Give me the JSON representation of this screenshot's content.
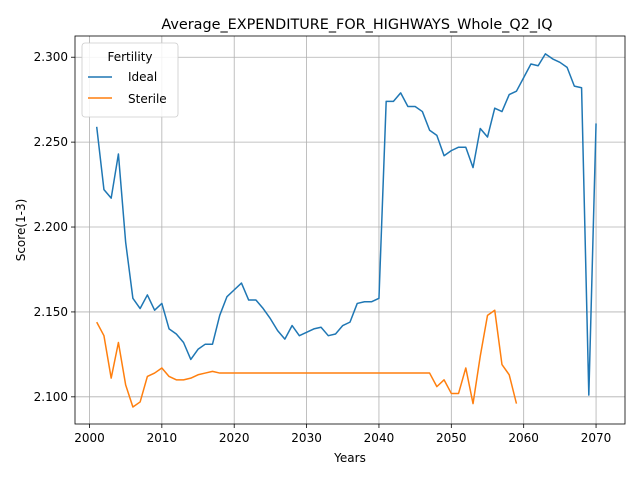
{
  "chart_data": {
    "type": "line",
    "title": "Average_EXPENDITURE_FOR_HIGHWAYS_Whole_Q2_IQ",
    "xlabel": "Years",
    "ylabel": "Score(1-3)",
    "xlim": [
      1998,
      2074
    ],
    "ylim": [
      2.084,
      2.3125
    ],
    "xticks": [
      2000,
      2010,
      2020,
      2030,
      2040,
      2050,
      2060,
      2070
    ],
    "yticks": [
      2.1,
      2.15,
      2.2,
      2.25,
      2.3
    ],
    "ytick_labels": [
      "2.100",
      "2.150",
      "2.200",
      "2.250",
      "2.300"
    ],
    "grid": true,
    "legend": {
      "title": "Fertility",
      "placement": "upper-left"
    },
    "series": [
      {
        "name": "Ideal",
        "color": "#1f77b4",
        "x": [
          2001,
          2002,
          2003,
          2004,
          2005,
          2006,
          2007,
          2008,
          2009,
          2010,
          2011,
          2012,
          2013,
          2014,
          2015,
          2016,
          2017,
          2018,
          2019,
          2020,
          2021,
          2022,
          2023,
          2024,
          2025,
          2026,
          2027,
          2028,
          2029,
          2030,
          2031,
          2032,
          2033,
          2034,
          2035,
          2036,
          2037,
          2038,
          2039,
          2040,
          2041,
          2042,
          2043,
          2044,
          2045,
          2046,
          2047,
          2048,
          2049,
          2050,
          2051,
          2052,
          2053,
          2054,
          2055,
          2056,
          2057,
          2058,
          2059,
          2060,
          2061,
          2062,
          2063,
          2064,
          2065,
          2066,
          2067,
          2068,
          2069,
          2070
        ],
        "values": [
          2.259,
          2.222,
          2.217,
          2.243,
          2.191,
          2.158,
          2.152,
          2.16,
          2.151,
          2.155,
          2.14,
          2.137,
          2.132,
          2.122,
          2.128,
          2.131,
          2.131,
          2.148,
          2.159,
          2.163,
          2.167,
          2.157,
          2.157,
          2.152,
          2.146,
          2.139,
          2.134,
          2.142,
          2.136,
          2.138,
          2.14,
          2.141,
          2.136,
          2.137,
          2.142,
          2.144,
          2.155,
          2.156,
          2.156,
          2.158,
          2.274,
          2.274,
          2.279,
          2.271,
          2.271,
          2.268,
          2.257,
          2.254,
          2.242,
          2.245,
          2.247,
          2.247,
          2.235,
          2.258,
          2.253,
          2.27,
          2.268,
          2.278,
          2.28,
          2.288,
          2.296,
          2.295,
          2.302,
          2.299,
          2.297,
          2.294,
          2.283,
          2.282,
          2.101,
          2.261
        ]
      },
      {
        "name": "Sterile",
        "color": "#ff7f0e",
        "x": [
          2001,
          2002,
          2003,
          2004,
          2005,
          2006,
          2007,
          2008,
          2009,
          2010,
          2011,
          2012,
          2013,
          2014,
          2015,
          2016,
          2017,
          2018,
          2019,
          2020,
          2021,
          2022,
          2023,
          2024,
          2025,
          2026,
          2027,
          2028,
          2029,
          2030,
          2031,
          2032,
          2033,
          2034,
          2035,
          2036,
          2037,
          2038,
          2039,
          2040,
          2041,
          2042,
          2043,
          2044,
          2045,
          2046,
          2047,
          2048,
          2049,
          2050,
          2051,
          2052,
          2053,
          2054,
          2055,
          2056,
          2057,
          2058,
          2059
        ],
        "values": [
          2.144,
          2.136,
          2.111,
          2.132,
          2.107,
          2.094,
          2.097,
          2.112,
          2.114,
          2.117,
          2.112,
          2.11,
          2.11,
          2.111,
          2.113,
          2.114,
          2.115,
          2.114,
          2.114,
          2.114,
          2.114,
          2.114,
          2.114,
          2.114,
          2.114,
          2.114,
          2.114,
          2.114,
          2.114,
          2.114,
          2.114,
          2.114,
          2.114,
          2.114,
          2.114,
          2.114,
          2.114,
          2.114,
          2.114,
          2.114,
          2.114,
          2.114,
          2.114,
          2.114,
          2.114,
          2.114,
          2.114,
          2.106,
          2.11,
          2.102,
          2.102,
          2.117,
          2.096,
          2.124,
          2.148,
          2.151,
          2.119,
          2.113,
          2.096
        ]
      }
    ]
  }
}
